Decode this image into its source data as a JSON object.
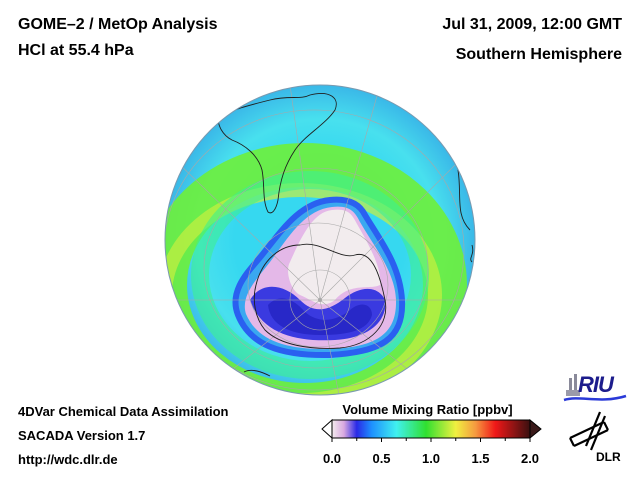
{
  "header": {
    "title": "GOME–2 / MetOp Analysis",
    "subtitle": "HCl at 55.4 hPa",
    "date": "Jul 31, 2009, 12:00 GMT",
    "hemisphere": "Southern Hemisphere"
  },
  "footer": {
    "line1": "4DVar Chemical Data Assimilation",
    "line2": "SACADA Version 1.7",
    "line3": "http://wdc.dlr.de"
  },
  "colorbar": {
    "title": "Volume Mixing Ratio [ppbv]",
    "min": 0.0,
    "max": 2.0,
    "ticks": [
      "0.0",
      "0.5",
      "1.0",
      "1.5",
      "2.0"
    ],
    "stops": [
      {
        "v": 0.0,
        "color": "#f4ecee"
      },
      {
        "v": 0.12,
        "color": "#d8a8e0"
      },
      {
        "v": 0.25,
        "color": "#2a2ae6"
      },
      {
        "v": 0.4,
        "color": "#1e90ff"
      },
      {
        "v": 0.65,
        "color": "#40f0f0"
      },
      {
        "v": 0.95,
        "color": "#30e030"
      },
      {
        "v": 1.25,
        "color": "#f0f040"
      },
      {
        "v": 1.45,
        "color": "#f59a40"
      },
      {
        "v": 1.65,
        "color": "#f01818"
      },
      {
        "v": 2.0,
        "color": "#3a1010"
      }
    ]
  },
  "logos": {
    "riu": "RIU",
    "dlr": "DLR"
  },
  "map": {
    "projection": "orthographic",
    "centre": "South Pole",
    "field": "HCl"
  }
}
